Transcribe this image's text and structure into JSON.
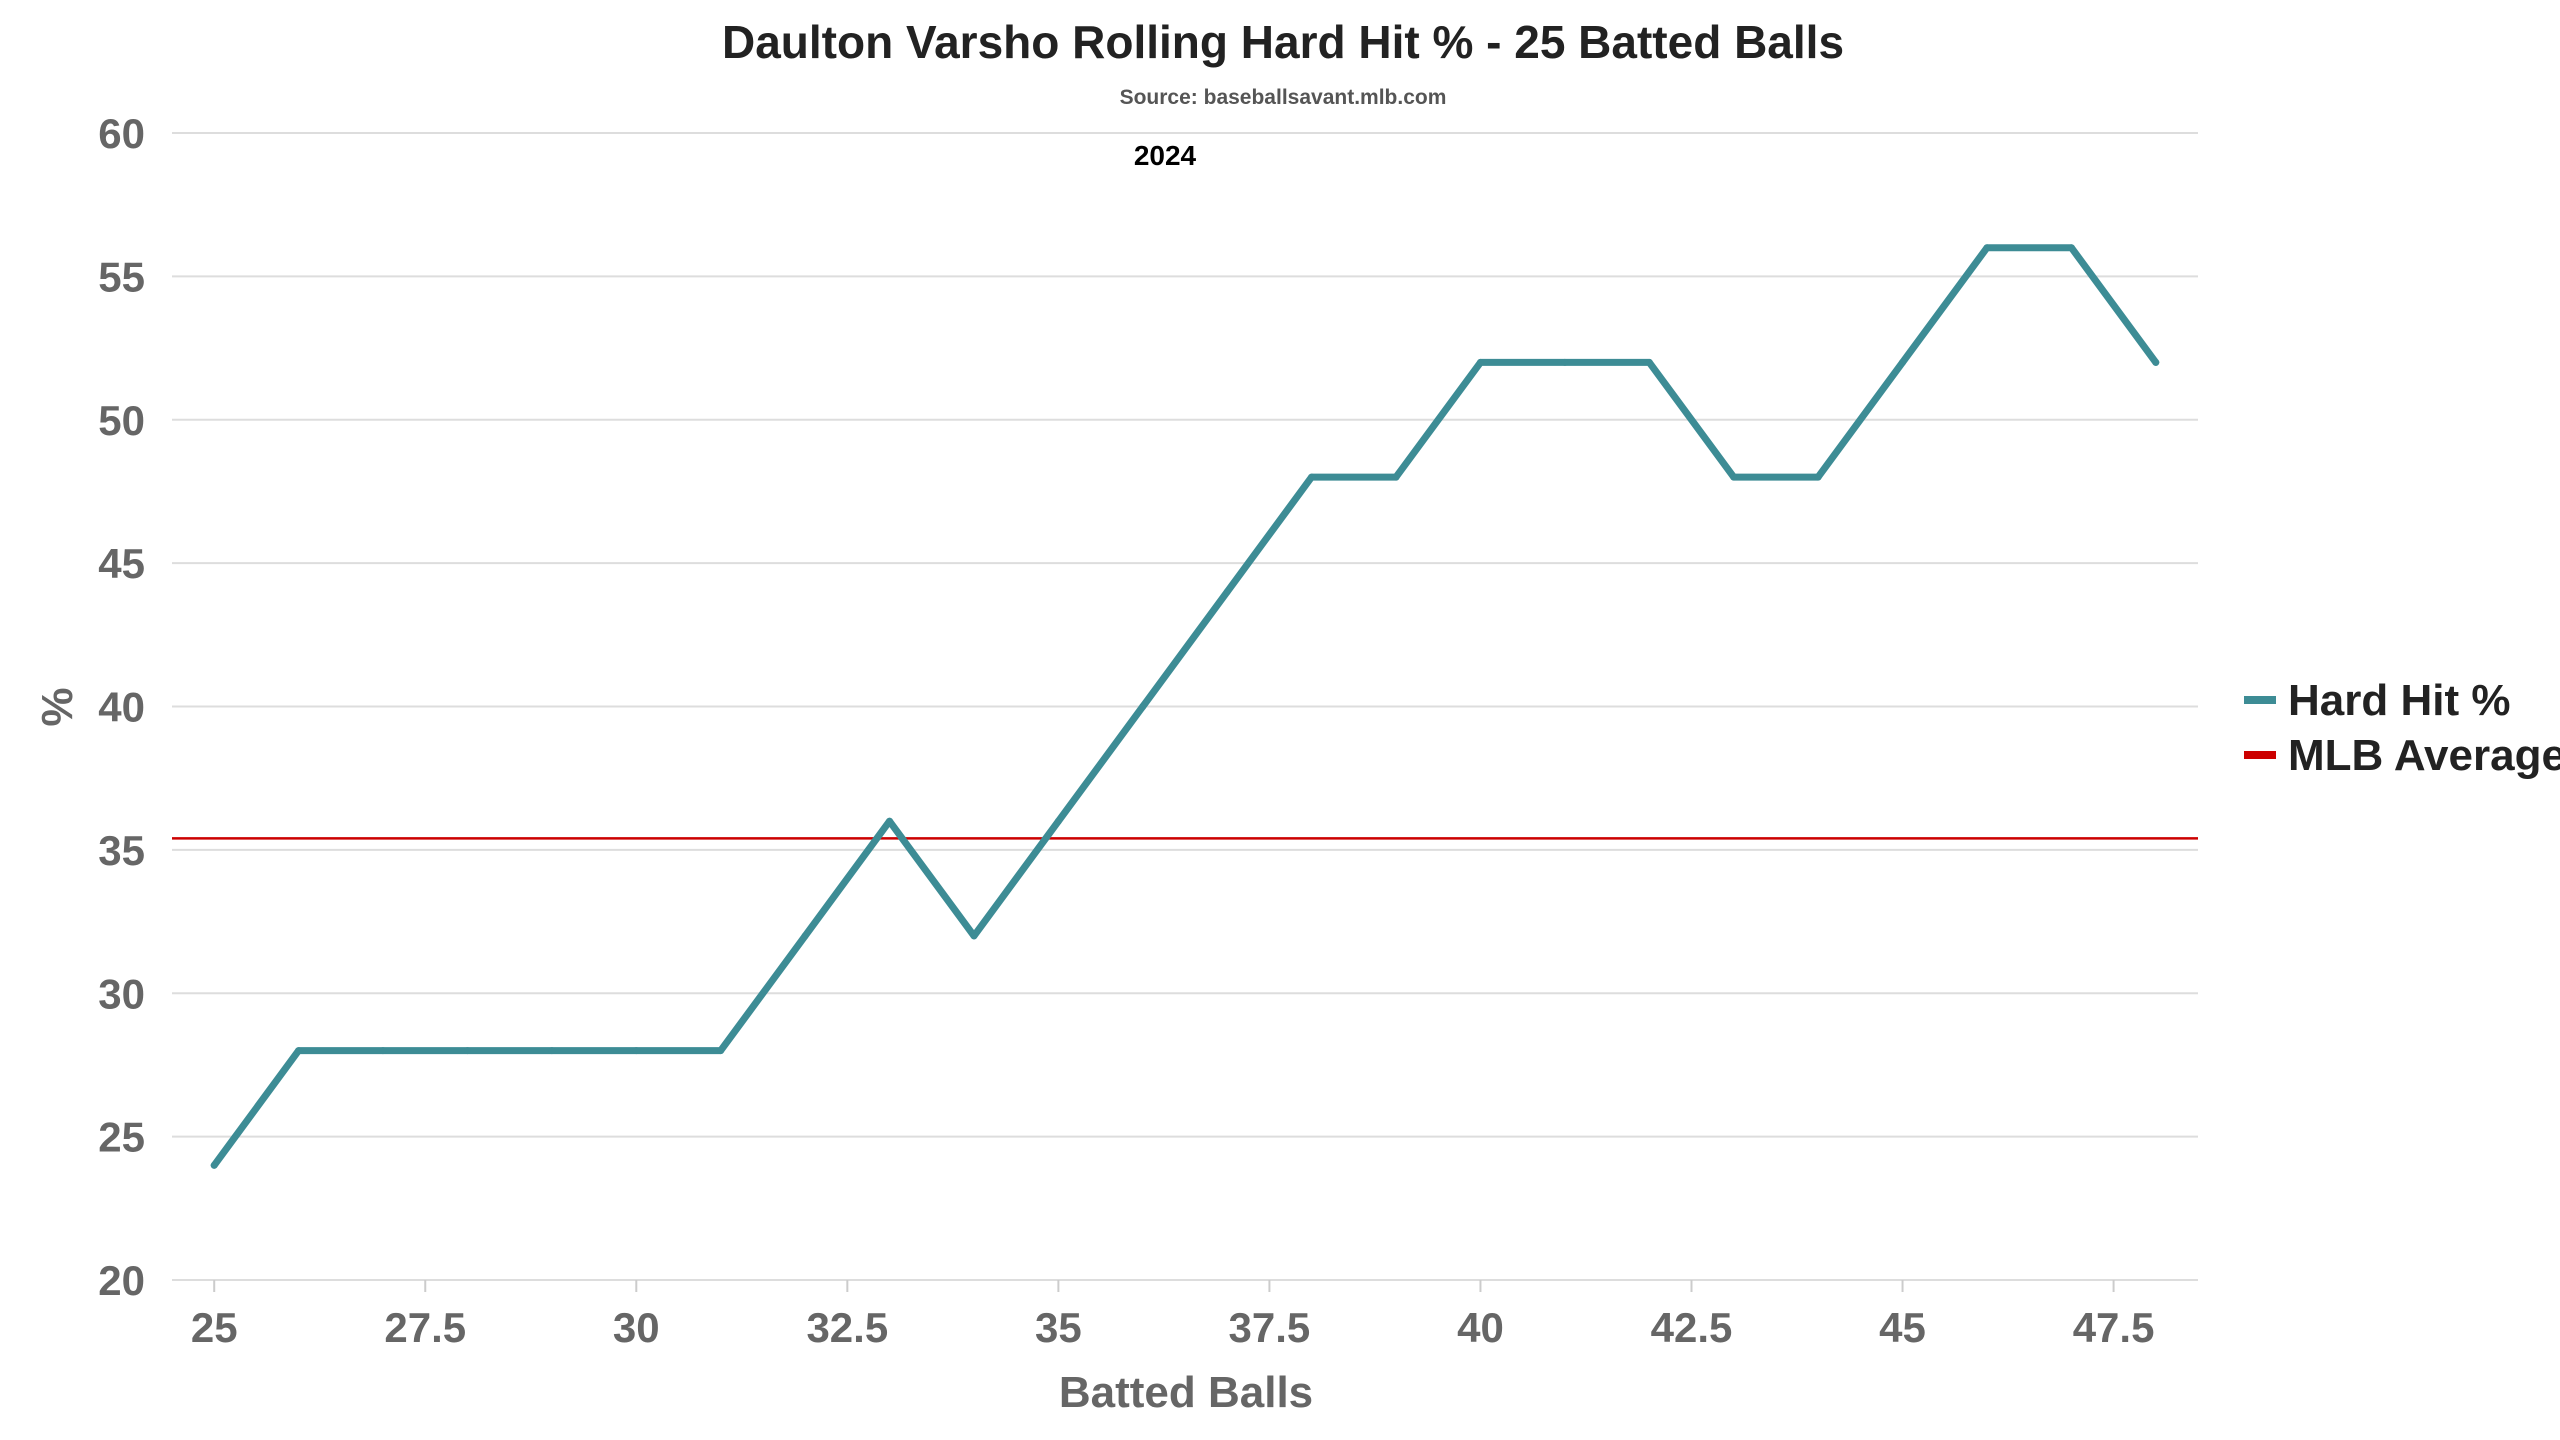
{
  "chart_data": {
    "type": "line",
    "title": "Daulton Varsho Rolling Hard Hit % - 25 Batted Balls",
    "subtitle": "Source: baseballsavant.mlb.com",
    "annotation": "2024",
    "xlabel": "Batted Balls",
    "ylabel": "%",
    "xlim": [
      24.5,
      48.5
    ],
    "ylim": [
      20,
      60
    ],
    "x_ticks": [
      "25",
      "27.5",
      "30",
      "32.5",
      "35",
      "37.5",
      "40",
      "42.5",
      "45",
      "47.5"
    ],
    "y_ticks": [
      "20",
      "25",
      "30",
      "35",
      "40",
      "45",
      "50",
      "55",
      "60"
    ],
    "grid": "horizontal",
    "legend_position": "right",
    "series": [
      {
        "name": "Hard Hit %",
        "color": "#3d8c95",
        "x": [
          25,
          26,
          27,
          28,
          29,
          30,
          31,
          32,
          33,
          34,
          35,
          36,
          37,
          38,
          39,
          40,
          41,
          42,
          43,
          44,
          45,
          46,
          47,
          48
        ],
        "y": [
          24,
          28,
          28,
          28,
          28,
          28,
          28,
          32,
          36,
          32,
          36,
          40,
          44,
          48,
          48,
          52,
          52,
          52,
          48,
          48,
          52,
          56,
          56,
          52
        ]
      }
    ],
    "reference_lines": [
      {
        "name": "MLB Average",
        "color": "#cc0000",
        "y": 35.4
      }
    ]
  }
}
